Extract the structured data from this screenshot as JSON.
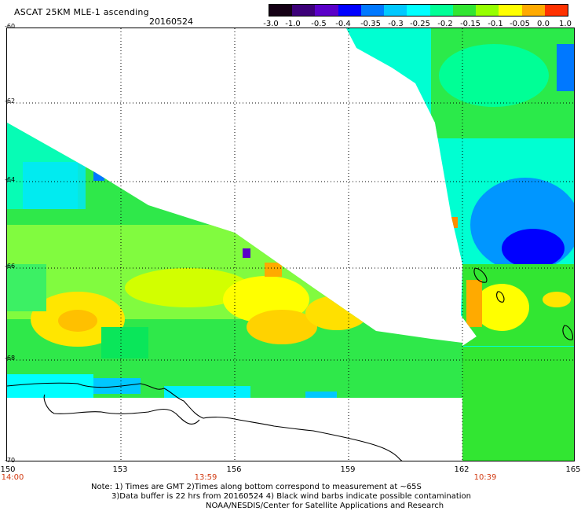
{
  "header": {
    "title": "ASCAT 25KM MLE-1 ascending",
    "date": "20160524"
  },
  "colorbar": {
    "labels": [
      "-3.0",
      "-1.0",
      "-0.5",
      "-0.4",
      "-0.35",
      "-0.3",
      "-0.25",
      "-0.2",
      "-0.15",
      "-0.1",
      "-0.05",
      "0.0",
      "1.0"
    ],
    "colors": [
      "#140014",
      "#3c0078",
      "#5a00c8",
      "#0000ff",
      "#0078ff",
      "#00c8ff",
      "#00ffff",
      "#00ff96",
      "#32e632",
      "#96ff00",
      "#ffff00",
      "#ffaa00",
      "#ff3200"
    ]
  },
  "map": {
    "lat_labels": [
      "-60",
      "-62",
      "-64",
      "-66",
      "-68",
      "-70"
    ],
    "lon_labels": [
      "150",
      "153",
      "156",
      "159",
      "162",
      "165"
    ],
    "time_labels": [
      "14:00",
      "13:59",
      "10:39"
    ],
    "colors": {
      "land_outline": "#000000",
      "grid": "#000000",
      "time_text": "#d23b13"
    }
  },
  "notes": {
    "line1": "Note: 1) Times are GMT 2)Times along bottom correspond to measurement at ~65S",
    "line2": "3)Data buffer is 22 hrs from 20160524 4) Black wind barbs indicate possible contamination",
    "line3": "NOAA/NESDIS/Center for Satellite Applications and Research"
  }
}
